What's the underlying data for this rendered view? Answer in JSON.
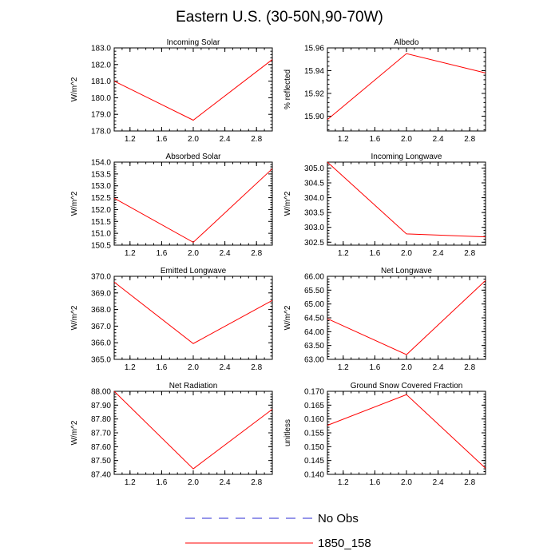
{
  "title": "Eastern U.S. (30-50N,90-70W)",
  "colors": {
    "model": "#ff0000",
    "obs": "#2b2bd6"
  },
  "legend": [
    {
      "label": "No Obs",
      "style": "dashed",
      "color": "#2b2bd6"
    },
    {
      "label": "1850_158",
      "style": "solid",
      "color": "#ff0000"
    }
  ],
  "chart_data": [
    {
      "type": "line",
      "title": "Incoming Solar",
      "ylabel": "W/m^2",
      "xlim": [
        1,
        3
      ],
      "ylim": [
        178.0,
        183.0
      ],
      "xticks": [
        1.2,
        1.6,
        2.0,
        2.4,
        2.8
      ],
      "xtick_labels": [
        "1.2",
        "1.6",
        "2.0",
        "2.4",
        "2.8"
      ],
      "yticks": [
        178.0,
        179.0,
        180.0,
        181.0,
        182.0,
        183.0
      ],
      "ytick_labels": [
        "178.0",
        "179.0",
        "180.0",
        "181.0",
        "182.0",
        "183.0"
      ],
      "series": [
        {
          "name": "1850_158",
          "x": [
            1,
            2,
            3
          ],
          "y": [
            181.0,
            178.65,
            182.3
          ]
        }
      ]
    },
    {
      "type": "line",
      "title": "Albedo",
      "ylabel": "% reflected",
      "xlim": [
        1,
        3
      ],
      "ylim": [
        15.887,
        15.96
      ],
      "xticks": [
        1.2,
        1.6,
        2.0,
        2.4,
        2.8
      ],
      "xtick_labels": [
        "1.2",
        "1.6",
        "2.0",
        "2.4",
        "2.8"
      ],
      "yticks": [
        15.9,
        15.92,
        15.94,
        15.96
      ],
      "ytick_labels": [
        "15.90",
        "15.92",
        "15.94",
        "15.96"
      ],
      "series": [
        {
          "name": "1850_158",
          "x": [
            1,
            2,
            3
          ],
          "y": [
            15.897,
            15.955,
            15.938
          ]
        }
      ]
    },
    {
      "type": "line",
      "title": "Absorbed Solar",
      "ylabel": "W/m^2",
      "xlim": [
        1,
        3
      ],
      "ylim": [
        150.5,
        154.0
      ],
      "xticks": [
        1.2,
        1.6,
        2.0,
        2.4,
        2.8
      ],
      "xtick_labels": [
        "1.2",
        "1.6",
        "2.0",
        "2.4",
        "2.8"
      ],
      "yticks": [
        150.5,
        151.0,
        151.5,
        152.0,
        152.5,
        153.0,
        153.5,
        154.0
      ],
      "ytick_labels": [
        "150.5",
        "151.0",
        "151.5",
        "152.0",
        "152.5",
        "153.0",
        "153.5",
        "154.0"
      ],
      "series": [
        {
          "name": "1850_158",
          "x": [
            1,
            2,
            3
          ],
          "y": [
            152.48,
            150.62,
            153.72
          ]
        }
      ]
    },
    {
      "type": "line",
      "title": "Incoming Longwave",
      "ylabel": "W/m^2",
      "xlim": [
        1,
        3
      ],
      "ylim": [
        302.4,
        305.2
      ],
      "xticks": [
        1.2,
        1.6,
        2.0,
        2.4,
        2.8
      ],
      "xtick_labels": [
        "1.2",
        "1.6",
        "2.0",
        "2.4",
        "2.8"
      ],
      "yticks": [
        302.5,
        303.0,
        303.5,
        304.0,
        304.5,
        305.0
      ],
      "ytick_labels": [
        "302.5",
        "303.0",
        "303.5",
        "304.0",
        "304.5",
        "305.0"
      ],
      "series": [
        {
          "name": "1850_158",
          "x": [
            1,
            2,
            3
          ],
          "y": [
            305.2,
            302.78,
            302.68
          ]
        }
      ]
    },
    {
      "type": "line",
      "title": "Emitted Longwave",
      "ylabel": "W/m^2",
      "xlim": [
        1,
        3
      ],
      "ylim": [
        365.0,
        370.0
      ],
      "xticks": [
        1.2,
        1.6,
        2.0,
        2.4,
        2.8
      ],
      "xtick_labels": [
        "1.2",
        "1.6",
        "2.0",
        "2.4",
        "2.8"
      ],
      "yticks": [
        365.0,
        366.0,
        367.0,
        368.0,
        369.0,
        370.0
      ],
      "ytick_labels": [
        "365.0",
        "366.0",
        "367.0",
        "368.0",
        "369.0",
        "370.0"
      ],
      "series": [
        {
          "name": "1850_158",
          "x": [
            1,
            2,
            3
          ],
          "y": [
            369.65,
            365.95,
            368.55
          ]
        }
      ]
    },
    {
      "type": "line",
      "title": "Net Longwave",
      "ylabel": "W/m^2",
      "xlim": [
        1,
        3
      ],
      "ylim": [
        63.0,
        66.0
      ],
      "xticks": [
        1.2,
        1.6,
        2.0,
        2.4,
        2.8
      ],
      "xtick_labels": [
        "1.2",
        "1.6",
        "2.0",
        "2.4",
        "2.8"
      ],
      "yticks": [
        63.0,
        63.5,
        64.0,
        64.5,
        65.0,
        65.5,
        66.0
      ],
      "ytick_labels": [
        "63.00",
        "63.50",
        "64.00",
        "64.50",
        "65.00",
        "65.50",
        "66.00"
      ],
      "series": [
        {
          "name": "1850_158",
          "x": [
            1,
            2,
            3
          ],
          "y": [
            64.47,
            63.17,
            65.85
          ]
        }
      ]
    },
    {
      "type": "line",
      "title": "Net Radiation",
      "ylabel": "W/m^2",
      "xlim": [
        1,
        3
      ],
      "ylim": [
        87.4,
        88.0
      ],
      "xticks": [
        1.2,
        1.6,
        2.0,
        2.4,
        2.8
      ],
      "xtick_labels": [
        "1.2",
        "1.6",
        "2.0",
        "2.4",
        "2.8"
      ],
      "yticks": [
        87.4,
        87.5,
        87.6,
        87.7,
        87.8,
        87.9,
        88.0
      ],
      "ytick_labels": [
        "87.40",
        "87.50",
        "87.60",
        "87.70",
        "87.80",
        "87.90",
        "88.00"
      ],
      "series": [
        {
          "name": "1850_158",
          "x": [
            1,
            2,
            3
          ],
          "y": [
            88.0,
            87.44,
            87.87
          ]
        }
      ]
    },
    {
      "type": "line",
      "title": "Ground Snow Covered Fraction",
      "ylabel": "unitless",
      "xlim": [
        1,
        3
      ],
      "ylim": [
        0.14,
        0.17
      ],
      "xticks": [
        1.2,
        1.6,
        2.0,
        2.4,
        2.8
      ],
      "xtick_labels": [
        "1.2",
        "1.6",
        "2.0",
        "2.4",
        "2.8"
      ],
      "yticks": [
        0.14,
        0.145,
        0.15,
        0.155,
        0.16,
        0.165,
        0.17
      ],
      "ytick_labels": [
        "0.140",
        "0.145",
        "0.150",
        "0.155",
        "0.160",
        "0.165",
        "0.170"
      ],
      "series": [
        {
          "name": "1850_158",
          "x": [
            1,
            2,
            3
          ],
          "y": [
            0.1577,
            0.1688,
            0.1422
          ]
        }
      ]
    }
  ]
}
